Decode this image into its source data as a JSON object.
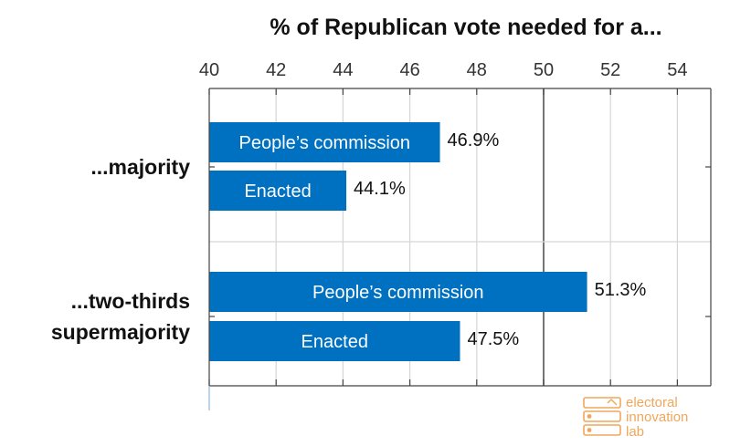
{
  "chart_data": {
    "type": "bar",
    "orientation": "horizontal",
    "title": "% of Republican vote needed for a...",
    "xlim": [
      40,
      55
    ],
    "xticks": [
      40,
      42,
      44,
      46,
      48,
      50,
      52,
      54
    ],
    "reference_line": 50,
    "groups": [
      {
        "label_lines": [
          "...majority"
        ],
        "bars": [
          {
            "label": "People’s commission",
            "value": 46.9,
            "value_label": "46.9%"
          },
          {
            "label": "Enacted",
            "value": 44.1,
            "value_label": "44.1%"
          }
        ]
      },
      {
        "label_lines": [
          "...two-thirds",
          "supermajority"
        ],
        "bars": [
          {
            "label": "People’s commission",
            "value": 51.3,
            "value_label": "51.3%"
          },
          {
            "label": "Enacted",
            "value": 47.5,
            "value_label": "47.5%"
          }
        ]
      }
    ],
    "colors": {
      "bar": "#0070c0",
      "grid": "#d6d6d6",
      "axis": "#444444"
    }
  },
  "logo": {
    "lines": [
      "electoral",
      "innovation",
      "lab"
    ],
    "color": "#f0a75a"
  }
}
